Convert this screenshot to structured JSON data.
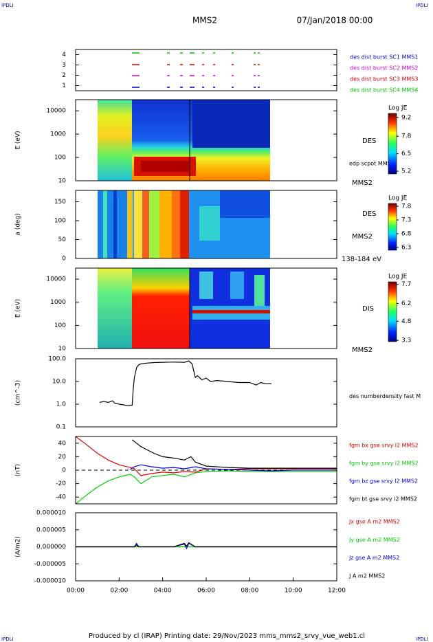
{
  "header": {
    "left_tag": "IPDLI",
    "right_tag": "IPDLI",
    "title": "MMS2",
    "date": "07/Jan/2018 00:00"
  },
  "footer": {
    "text": "Produced by cl (IRAP)   Printing date: 29/Nov/2023   mms_mms2_srvy_vue_web1.cl",
    "left_tag": "IPDLI",
    "right_tag": "IPDLI"
  },
  "chart_data": [
    {
      "type": "burst",
      "xlim": [
        0,
        12
      ],
      "ylim": [
        0.5,
        4.5
      ],
      "yticks": [
        1,
        2,
        3,
        4
      ],
      "series": [
        {
          "name": "des dist burst SC1 MMS1",
          "color": "#0000cc"
        },
        {
          "name": "des dist burst SC2 MMS2",
          "color": "#cc00cc"
        },
        {
          "name": "des dist burst SC3 MMS3",
          "color": "#cc0000"
        },
        {
          "name": "des dist burst SC4 MMS4",
          "color": "#00bb00"
        }
      ]
    },
    {
      "type": "spectrogram",
      "xlim": [
        0,
        12
      ],
      "ylabel": "E (eV)",
      "log": true,
      "ylim": [
        10,
        30000
      ],
      "yticks": [
        10,
        100,
        1000,
        10000
      ],
      "labels": [
        "DES",
        "edp scpot MMS2",
        "MMS2"
      ],
      "colorbar": {
        "title": "Log JE",
        "clim": [
          5.0,
          9.5
        ],
        "ticks": [
          9.2,
          7.8,
          6.5,
          5.2
        ]
      }
    },
    {
      "type": "spectrogram",
      "xlim": [
        0,
        12
      ],
      "ylabel": "a (deg)",
      "ylim": [
        0,
        180
      ],
      "yticks": [
        0,
        50,
        100,
        150
      ],
      "labels": [
        "DES",
        "MMS2",
        "138-184 eV"
      ],
      "colorbar": {
        "title": "Log JE",
        "clim": [
          6.2,
          7.9
        ],
        "ticks": [
          7.8,
          7.3,
          6.8,
          6.3
        ]
      }
    },
    {
      "type": "spectrogram",
      "xlim": [
        0,
        12
      ],
      "ylabel": "E (eV)",
      "log": true,
      "ylim": [
        10,
        30000
      ],
      "yticks": [
        10,
        100,
        1000,
        10000
      ],
      "labels": [
        "DIS",
        "MMS2"
      ],
      "colorbar": {
        "title": "Log JE",
        "clim": [
          3.2,
          7.9
        ],
        "ticks": [
          7.7,
          6.2,
          4.8,
          3.3
        ]
      }
    },
    {
      "type": "line",
      "xlim": [
        0,
        12
      ],
      "ylabel": "(cm^-3)",
      "log": true,
      "ylim": [
        0.1,
        100
      ],
      "yticks": [
        {
          "value": 100,
          "label": "100.0"
        },
        {
          "value": 10,
          "label": "10.0"
        },
        {
          "value": 1,
          "label": "1.0"
        },
        {
          "value": 0.1,
          "label": "0.1"
        }
      ],
      "series": [
        {
          "name": "des numberdensity fast M",
          "color": "#000000",
          "x": [
            1.1,
            1.3,
            1.5,
            1.7,
            1.8,
            2.0,
            2.3,
            2.4,
            2.5,
            2.6,
            2.65,
            2.7,
            2.8,
            2.9,
            3.0,
            3.3,
            3.6,
            4.0,
            4.5,
            5.0,
            5.2,
            5.35,
            5.5,
            5.6,
            5.8,
            6.0,
            6.2,
            6.5,
            7.0,
            7.5,
            8.0,
            8.3,
            8.5,
            8.7,
            9.0
          ],
          "values": [
            1.2,
            1.3,
            1.2,
            1.4,
            1.1,
            1.0,
            0.9,
            0.85,
            0.9,
            0.9,
            5,
            15,
            40,
            55,
            60,
            65,
            68,
            70,
            72,
            70,
            80,
            60,
            15,
            18,
            12,
            14,
            10,
            11,
            10,
            9,
            9,
            7,
            9,
            8,
            8
          ]
        }
      ]
    },
    {
      "type": "line",
      "xlim": [
        0,
        12
      ],
      "ylabel": "(nT)",
      "ylim": [
        -50,
        50
      ],
      "yticks": [
        -40,
        -20,
        0,
        20,
        40
      ],
      "zero_line": true,
      "series": [
        {
          "name": "fgm bx gse srvy l2 MMS2",
          "color": "#dd0000",
          "x": [
            0,
            0.5,
            1,
            1.5,
            2,
            2.5,
            2.7,
            3,
            3.5,
            4,
            4.5,
            5,
            5.5,
            6,
            7,
            8,
            9,
            10,
            11,
            12
          ],
          "values": [
            50,
            38,
            25,
            15,
            8,
            4,
            2,
            -8,
            -5,
            -3,
            -4,
            -2,
            -3,
            2,
            1,
            2,
            2,
            2,
            2,
            2
          ]
        },
        {
          "name": "fgm by gse srvy l2 MMS2",
          "color": "#00cc00",
          "x": [
            0,
            0.5,
            1,
            1.5,
            2,
            2.5,
            2.7,
            3,
            3.5,
            4,
            4.5,
            5,
            5.5,
            6,
            7,
            8,
            9,
            10,
            11,
            12
          ],
          "values": [
            -50,
            -37,
            -25,
            -16,
            -10,
            -6,
            -10,
            -20,
            -10,
            -8,
            -6,
            -10,
            -4,
            -2,
            -1,
            -2,
            -2,
            -2,
            -2,
            -2
          ]
        },
        {
          "name": "fgm bz gse srvy l2 MMS2",
          "color": "#0000dd",
          "x": [
            2.5,
            2.7,
            3,
            3.5,
            4,
            4.5,
            5,
            5.5,
            6,
            7,
            8,
            9,
            10,
            11,
            12
          ],
          "values": [
            1,
            5,
            8,
            5,
            3,
            4,
            2,
            5,
            2,
            1,
            0,
            -1,
            0,
            0,
            0
          ]
        },
        {
          "name": "fgm bt gse srvy l2 MMS2",
          "color": "#000000",
          "x": [
            2.6,
            2.8,
            3,
            3.3,
            3.6,
            4,
            4.5,
            5,
            5.3,
            5.5,
            6,
            7,
            8,
            9,
            10,
            11,
            12
          ],
          "values": [
            45,
            40,
            35,
            30,
            25,
            20,
            18,
            15,
            20,
            12,
            6,
            4,
            3,
            3,
            3,
            3,
            3
          ]
        }
      ]
    },
    {
      "type": "line",
      "xlim": [
        0,
        12
      ],
      "ylabel": "(A/m2)",
      "ylim": [
        -1e-05,
        1e-05
      ],
      "yticks": [
        {
          "value": 1e-05,
          "label": "0.000010"
        },
        {
          "value": 5e-06,
          "label": "0.000005"
        },
        {
          "value": 0,
          "label": "0.000000"
        },
        {
          "value": -5e-06,
          "label": "-0.000005"
        },
        {
          "value": -1e-05,
          "label": "-0.000010"
        }
      ],
      "xticks": [
        {
          "value": 0,
          "label": "00:00"
        },
        {
          "value": 2,
          "label": "02:00"
        },
        {
          "value": 4,
          "label": "04:00"
        },
        {
          "value": 6,
          "label": "06:00"
        },
        {
          "value": 8,
          "label": "08:00"
        },
        {
          "value": 10,
          "label": "10:00"
        },
        {
          "value": 12,
          "label": "12:00"
        }
      ],
      "series": [
        {
          "name": "Jx gse A m2 MMS2",
          "color": "#dd0000",
          "x": [
            0,
            12
          ],
          "values": [
            0,
            0
          ]
        },
        {
          "name": "Jy gse A m2 MMS2",
          "color": "#00cc00",
          "x": [
            0,
            12
          ],
          "values": [
            0,
            0
          ]
        },
        {
          "name": "Jz gse A m2 MMS2",
          "color": "#0000dd",
          "x": [
            0,
            2.7,
            2.8,
            2.9,
            4.5,
            5,
            5.1,
            5.2,
            5.5,
            12
          ],
          "values": [
            0,
            0,
            1e-06,
            0,
            0,
            8e-07,
            -5e-07,
            1e-06,
            0,
            0
          ]
        },
        {
          "name": "J A m2 MMS2",
          "color": "#000000",
          "x": [
            0,
            2.7,
            2.8,
            2.9,
            4.5,
            5,
            5.1,
            5.2,
            5.5,
            12
          ],
          "values": [
            0,
            0,
            5e-07,
            0,
            0,
            1e-06,
            2e-07,
            1.2e-06,
            0,
            0
          ]
        }
      ]
    }
  ]
}
